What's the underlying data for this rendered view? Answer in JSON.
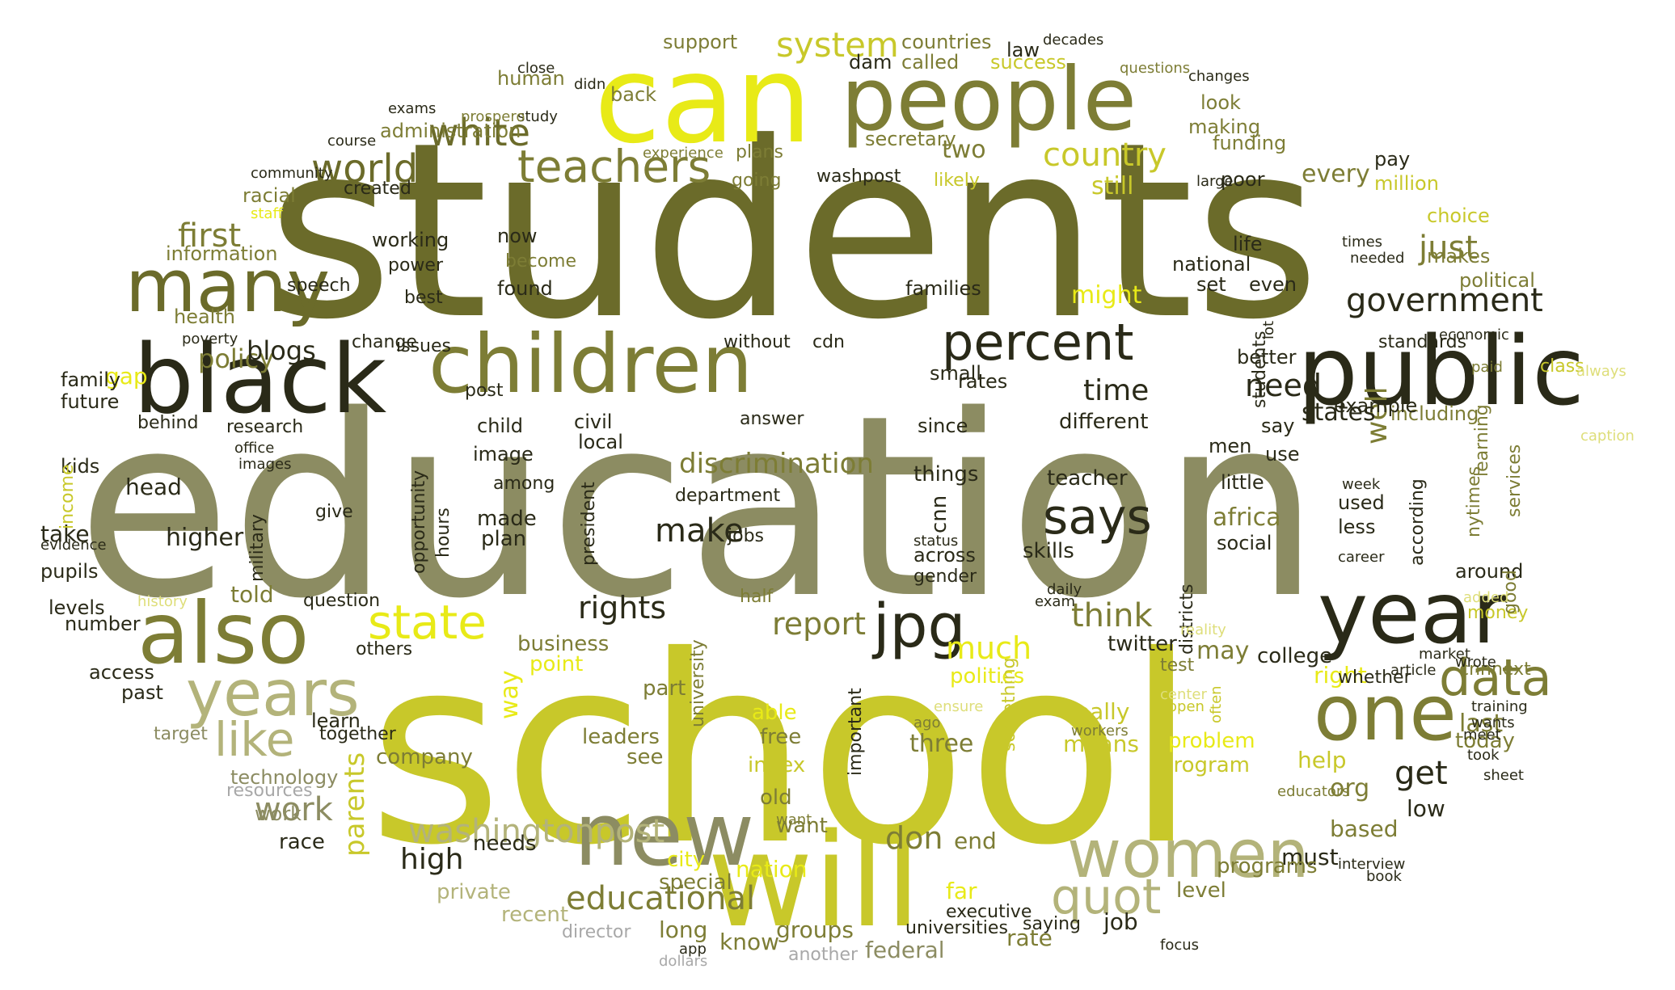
{
  "palette": {
    "background": "#ffffff",
    "olive_dark": "#6b6b2a",
    "olive_grey": "#8c8c62",
    "olive_black": "#2a2a18",
    "olive_mid": "#7d7d35",
    "yellow_green": "#c8c82a",
    "bright_yellow": "#e8ea17",
    "khaki": "#b3b37a",
    "pale_yellow": "#dede7a",
    "grey": "#a8a8a8"
  },
  "words": [
    {
      "text": "students",
      "color": "olive_dark"
    },
    {
      "text": "education",
      "color": "olive_grey"
    },
    {
      "text": "school",
      "color": "yellow_green"
    },
    {
      "text": "can",
      "color": "bright_yellow"
    },
    {
      "text": "people",
      "color": "olive_mid"
    },
    {
      "text": "public",
      "color": "olive_black"
    },
    {
      "text": "children",
      "color": "olive_mid"
    },
    {
      "text": "black",
      "color": "olive_black"
    },
    {
      "text": "will",
      "color": "yellow_green"
    },
    {
      "text": "also",
      "color": "olive_mid"
    },
    {
      "text": "year",
      "color": "olive_black"
    },
    {
      "text": "years",
      "color": "khaki"
    },
    {
      "text": "new",
      "color": "olive_grey"
    },
    {
      "text": "many",
      "color": "olive_dark"
    },
    {
      "text": "women",
      "color": "khaki"
    },
    {
      "text": "one",
      "color": "olive_mid"
    },
    {
      "text": "percent",
      "color": "olive_black"
    },
    {
      "text": "state",
      "color": "bright_yellow"
    },
    {
      "text": "jpg",
      "color": "olive_black"
    },
    {
      "text": "data",
      "color": "olive_mid"
    },
    {
      "text": "says",
      "color": "olive_black"
    },
    {
      "text": "quot",
      "color": "khaki"
    },
    {
      "text": "like",
      "color": "khaki"
    },
    {
      "text": "teachers",
      "color": "olive_mid"
    },
    {
      "text": "world",
      "color": "olive_dark"
    },
    {
      "text": "white",
      "color": "olive_dark"
    },
    {
      "text": "system",
      "color": "yellow_green"
    },
    {
      "text": "washingtonpost",
      "color": "khaki"
    },
    {
      "text": "educational",
      "color": "olive_mid"
    },
    {
      "text": "government",
      "color": "olive_black"
    },
    {
      "text": "rights",
      "color": "olive_black"
    },
    {
      "text": "first",
      "color": "olive_mid"
    },
    {
      "text": "country",
      "color": "yellow_green"
    },
    {
      "text": "make",
      "color": "olive_black"
    },
    {
      "text": "work",
      "color": "olive_grey"
    },
    {
      "text": "think",
      "color": "olive_mid"
    },
    {
      "text": "report",
      "color": "olive_mid"
    },
    {
      "text": "get",
      "color": "olive_black"
    },
    {
      "text": "just",
      "color": "olive_mid"
    },
    {
      "text": "need",
      "color": "olive_black"
    },
    {
      "text": "much",
      "color": "bright_yellow"
    },
    {
      "text": "high",
      "color": "olive_black"
    },
    {
      "text": "don",
      "color": "olive_mid"
    },
    {
      "text": "well",
      "color": "olive_mid"
    },
    {
      "text": "time",
      "color": "olive_black"
    },
    {
      "text": "states",
      "color": "olive_black"
    },
    {
      "text": "discrimination",
      "color": "olive_mid"
    },
    {
      "text": "parents",
      "color": "yellow_green"
    },
    {
      "text": "policy",
      "color": "olive_mid"
    },
    {
      "text": "blogs",
      "color": "olive_black"
    },
    {
      "text": "might",
      "color": "bright_yellow"
    },
    {
      "text": "still",
      "color": "yellow_green"
    },
    {
      "text": "two",
      "color": "olive_mid"
    },
    {
      "text": "africa",
      "color": "olive_mid"
    },
    {
      "text": "may",
      "color": "olive_mid"
    },
    {
      "text": "way",
      "color": "bright_yellow"
    },
    {
      "text": "last",
      "color": "olive_mid"
    },
    {
      "text": "org",
      "color": "olive_mid"
    },
    {
      "text": "every",
      "color": "olive_mid"
    },
    {
      "text": "higher",
      "color": "olive_black"
    },
    {
      "text": "told",
      "color": "olive_mid"
    },
    {
      "text": "take",
      "color": "olive_black"
    },
    {
      "text": "gap",
      "color": "bright_yellow"
    },
    {
      "text": "head",
      "color": "olive_black"
    },
    {
      "text": "help",
      "color": "yellow_green"
    },
    {
      "text": "right",
      "color": "bright_yellow"
    },
    {
      "text": "three",
      "color": "olive_mid"
    },
    {
      "text": "means",
      "color": "yellow_green"
    },
    {
      "text": "really",
      "color": "yellow_green"
    },
    {
      "text": "based",
      "color": "olive_mid"
    },
    {
      "text": "nation",
      "color": "bright_yellow"
    },
    {
      "text": "know",
      "color": "olive_mid"
    },
    {
      "text": "long",
      "color": "olive_mid"
    },
    {
      "text": "federal",
      "color": "olive_grey"
    },
    {
      "text": "rate",
      "color": "olive_mid"
    },
    {
      "text": "groups",
      "color": "olive_mid"
    },
    {
      "text": "end",
      "color": "olive_mid"
    },
    {
      "text": "far",
      "color": "bright_yellow"
    },
    {
      "text": "job",
      "color": "olive_black"
    },
    {
      "text": "low",
      "color": "olive_black"
    },
    {
      "text": "must",
      "color": "olive_black"
    },
    {
      "text": "city",
      "color": "bright_yellow"
    },
    {
      "text": "special",
      "color": "olive_mid"
    },
    {
      "text": "private",
      "color": "khaki"
    },
    {
      "text": "recent",
      "color": "khaki"
    },
    {
      "text": "race",
      "color": "olive_black"
    },
    {
      "text": "needs",
      "color": "olive_black"
    },
    {
      "text": "programs",
      "color": "olive_mid"
    },
    {
      "text": "level",
      "color": "olive_mid"
    },
    {
      "text": "problem",
      "color": "bright_yellow"
    },
    {
      "text": "program",
      "color": "yellow_green"
    },
    {
      "text": "today",
      "color": "olive_mid"
    },
    {
      "text": "college",
      "color": "olive_black"
    },
    {
      "text": "twitter",
      "color": "olive_black"
    },
    {
      "text": "politics",
      "color": "bright_yellow"
    },
    {
      "text": "business",
      "color": "olive_mid"
    },
    {
      "text": "point",
      "color": "bright_yellow"
    },
    {
      "text": "part",
      "color": "olive_mid"
    },
    {
      "text": "see",
      "color": "olive_mid"
    },
    {
      "text": "free",
      "color": "olive_mid"
    },
    {
      "text": "able",
      "color": "bright_yellow"
    },
    {
      "text": "old",
      "color": "olive_mid"
    },
    {
      "text": "want",
      "color": "olive_mid"
    },
    {
      "text": "index",
      "color": "yellow_green"
    },
    {
      "text": "leaders",
      "color": "olive_mid"
    },
    {
      "text": "company",
      "color": "olive_mid"
    },
    {
      "text": "learn",
      "color": "olive_black"
    },
    {
      "text": "access",
      "color": "olive_black"
    },
    {
      "text": "past",
      "color": "olive_black"
    },
    {
      "text": "number",
      "color": "olive_black"
    },
    {
      "text": "levels",
      "color": "olive_black"
    },
    {
      "text": "pupils",
      "color": "olive_black"
    },
    {
      "text": "kids",
      "color": "olive_black"
    },
    {
      "text": "family",
      "color": "olive_black"
    },
    {
      "text": "future",
      "color": "olive_black"
    },
    {
      "text": "health",
      "color": "olive_mid"
    },
    {
      "text": "information",
      "color": "olive_mid"
    },
    {
      "text": "racial",
      "color": "olive_mid"
    },
    {
      "text": "administration",
      "color": "olive_mid"
    },
    {
      "text": "human",
      "color": "olive_mid"
    },
    {
      "text": "support",
      "color": "olive_mid"
    },
    {
      "text": "back",
      "color": "olive_mid"
    },
    {
      "text": "called",
      "color": "olive_mid"
    },
    {
      "text": "success",
      "color": "yellow_green"
    },
    {
      "text": "countries",
      "color": "olive_mid"
    },
    {
      "text": "law",
      "color": "olive_black"
    },
    {
      "text": "dam",
      "color": "olive_black"
    },
    {
      "text": "secretary",
      "color": "olive_mid"
    },
    {
      "text": "funding",
      "color": "olive_mid"
    },
    {
      "text": "look",
      "color": "olive_mid"
    },
    {
      "text": "making",
      "color": "olive_mid"
    },
    {
      "text": "poor",
      "color": "olive_black"
    },
    {
      "text": "pay",
      "color": "olive_black"
    },
    {
      "text": "choice",
      "color": "yellow_green"
    },
    {
      "text": "million",
      "color": "yellow_green"
    },
    {
      "text": "makes",
      "color": "olive_mid"
    },
    {
      "text": "political",
      "color": "olive_mid"
    },
    {
      "text": "national",
      "color": "olive_black"
    },
    {
      "text": "life",
      "color": "olive_black"
    },
    {
      "text": "set",
      "color": "olive_black"
    },
    {
      "text": "even",
      "color": "olive_black"
    },
    {
      "text": "better",
      "color": "olive_black"
    },
    {
      "text": "say",
      "color": "olive_black"
    },
    {
      "text": "including",
      "color": "olive_mid"
    },
    {
      "text": "example",
      "color": "olive_black"
    },
    {
      "text": "class",
      "color": "yellow_green"
    },
    {
      "text": "standards",
      "color": "olive_black"
    },
    {
      "text": "use",
      "color": "olive_black"
    },
    {
      "text": "little",
      "color": "olive_black"
    },
    {
      "text": "men",
      "color": "olive_black"
    },
    {
      "text": "social",
      "color": "olive_black"
    },
    {
      "text": "used",
      "color": "olive_black"
    },
    {
      "text": "less",
      "color": "olive_black"
    },
    {
      "text": "around",
      "color": "olive_black"
    },
    {
      "text": "whether",
      "color": "olive_black"
    },
    {
      "text": "test",
      "color": "olive_mid"
    },
    {
      "text": "cnnnext",
      "color": "olive_mid"
    },
    {
      "text": "money",
      "color": "yellow_green"
    },
    {
      "text": "nytimes",
      "color": "olive_mid"
    },
    {
      "text": "learning",
      "color": "olive_mid"
    },
    {
      "text": "services",
      "color": "olive_mid"
    },
    {
      "text": "good",
      "color": "olive_mid"
    },
    {
      "text": "according",
      "color": "olive_black"
    },
    {
      "text": "teacher",
      "color": "olive_black"
    },
    {
      "text": "different",
      "color": "olive_black"
    },
    {
      "text": "skills",
      "color": "olive_black"
    },
    {
      "text": "across",
      "color": "olive_black"
    },
    {
      "text": "gender",
      "color": "olive_black"
    },
    {
      "text": "things",
      "color": "olive_black"
    },
    {
      "text": "cnn",
      "color": "olive_black"
    },
    {
      "text": "since",
      "color": "olive_black"
    },
    {
      "text": "small",
      "color": "olive_black"
    },
    {
      "text": "rates",
      "color": "olive_black"
    },
    {
      "text": "families",
      "color": "olive_black"
    },
    {
      "text": "likely",
      "color": "yellow_green"
    },
    {
      "text": "going",
      "color": "olive_mid"
    },
    {
      "text": "plans",
      "color": "olive_mid"
    },
    {
      "text": "washpost",
      "color": "olive_black"
    },
    {
      "text": "cdn",
      "color": "olive_black"
    },
    {
      "text": "without",
      "color": "olive_black"
    },
    {
      "text": "answer",
      "color": "olive_black"
    },
    {
      "text": "jobs",
      "color": "olive_black"
    },
    {
      "text": "half",
      "color": "olive_mid"
    },
    {
      "text": "department",
      "color": "olive_black"
    },
    {
      "text": "among",
      "color": "olive_black"
    },
    {
      "text": "made",
      "color": "olive_black"
    },
    {
      "text": "plan",
      "color": "olive_black"
    },
    {
      "text": "image",
      "color": "olive_black"
    },
    {
      "text": "child",
      "color": "olive_black"
    },
    {
      "text": "local",
      "color": "olive_black"
    },
    {
      "text": "civil",
      "color": "olive_black"
    },
    {
      "text": "post",
      "color": "olive_black"
    },
    {
      "text": "now",
      "color": "olive_black"
    },
    {
      "text": "become",
      "color": "olive_mid"
    },
    {
      "text": "found",
      "color": "olive_black"
    },
    {
      "text": "working",
      "color": "olive_black"
    },
    {
      "text": "power",
      "color": "olive_black"
    },
    {
      "text": "best",
      "color": "olive_black"
    },
    {
      "text": "issues",
      "color": "olive_black"
    },
    {
      "text": "change",
      "color": "olive_black"
    },
    {
      "text": "speech",
      "color": "olive_black"
    },
    {
      "text": "created",
      "color": "olive_black"
    },
    {
      "text": "research",
      "color": "olive_black"
    },
    {
      "text": "behind",
      "color": "olive_black"
    },
    {
      "text": "give",
      "color": "olive_black"
    },
    {
      "text": "technology",
      "color": "olive_grey"
    },
    {
      "text": "resources",
      "color": "grey"
    },
    {
      "text": "director",
      "color": "grey"
    },
    {
      "text": "another",
      "color": "grey"
    },
    {
      "text": "saying",
      "color": "olive_black"
    },
    {
      "text": "executive",
      "color": "olive_black"
    },
    {
      "text": "universities",
      "color": "olive_black"
    },
    {
      "text": "university",
      "color": "olive_mid"
    },
    {
      "text": "president",
      "color": "olive_black"
    },
    {
      "text": "opportunity",
      "color": "olive_black"
    },
    {
      "text": "military",
      "color": "olive_black"
    },
    {
      "text": "income",
      "color": "yellow_green"
    },
    {
      "text": "hours",
      "color": "olive_black"
    },
    {
      "text": "students",
      "color": "olive_black"
    },
    {
      "text": "districts",
      "color": "olive_black"
    },
    {
      "text": "important",
      "color": "olive_black"
    },
    {
      "text": "something",
      "color": "yellow_green"
    },
    {
      "text": "others",
      "color": "olive_black"
    },
    {
      "text": "question",
      "color": "olive_black"
    },
    {
      "text": "together",
      "color": "olive_black"
    },
    {
      "text": "target",
      "color": "olive_grey"
    },
    {
      "text": "history",
      "color": "pale_yellow"
    },
    {
      "text": "evidence",
      "color": "olive_black"
    },
    {
      "text": "office",
      "color": "olive_black"
    },
    {
      "text": "images",
      "color": "olive_black"
    },
    {
      "text": "poverty",
      "color": "olive_black"
    },
    {
      "text": "staff",
      "color": "bright_yellow"
    },
    {
      "text": "experience",
      "color": "olive_mid"
    },
    {
      "text": "study",
      "color": "olive_black"
    },
    {
      "text": "prospero",
      "color": "olive_mid"
    },
    {
      "text": "course",
      "color": "olive_black"
    },
    {
      "text": "exams",
      "color": "olive_black"
    },
    {
      "text": "community",
      "color": "olive_black"
    },
    {
      "text": "close",
      "color": "olive_black"
    },
    {
      "text": "didn",
      "color": "olive_black"
    },
    {
      "text": "questions",
      "color": "olive_mid"
    },
    {
      "text": "decades",
      "color": "olive_black"
    },
    {
      "text": "changes",
      "color": "olive_black"
    },
    {
      "text": "large",
      "color": "olive_black"
    },
    {
      "text": "lot",
      "color": "olive_black"
    },
    {
      "text": "times",
      "color": "olive_black"
    },
    {
      "text": "needed",
      "color": "olive_black"
    },
    {
      "text": "economic",
      "color": "olive_black"
    },
    {
      "text": "paid",
      "color": "olive_mid"
    },
    {
      "text": "always",
      "color": "pale_yellow"
    },
    {
      "text": "caption",
      "color": "pale_yellow"
    },
    {
      "text": "week",
      "color": "olive_black"
    },
    {
      "text": "career",
      "color": "olive_black"
    },
    {
      "text": "reality",
      "color": "pale_yellow"
    },
    {
      "text": "often",
      "color": "yellow_green"
    },
    {
      "text": "workers",
      "color": "olive_mid"
    },
    {
      "text": "ago",
      "color": "olive_mid"
    },
    {
      "text": "status",
      "color": "olive_black"
    },
    {
      "text": "daily",
      "color": "olive_black"
    },
    {
      "text": "exam",
      "color": "olive_black"
    },
    {
      "text": "market",
      "color": "olive_black"
    },
    {
      "text": "added",
      "color": "pale_yellow"
    },
    {
      "text": "training",
      "color": "olive_black"
    },
    {
      "text": "wants",
      "color": "olive_black"
    },
    {
      "text": "meet",
      "color": "olive_black"
    },
    {
      "text": "took",
      "color": "olive_black"
    },
    {
      "text": "sheet",
      "color": "olive_black"
    },
    {
      "text": "wrote",
      "color": "olive_black"
    },
    {
      "text": "article",
      "color": "olive_black"
    },
    {
      "text": "interview",
      "color": "olive_black"
    },
    {
      "text": "book",
      "color": "olive_black"
    },
    {
      "text": "educators",
      "color": "olive_mid"
    },
    {
      "text": "center",
      "color": "pale_yellow"
    },
    {
      "text": "open",
      "color": "yellow_green"
    },
    {
      "text": "ensure",
      "color": "pale_yellow"
    },
    {
      "text": "want",
      "color": "olive_mid"
    },
    {
      "text": "focus",
      "color": "olive_black"
    },
    {
      "text": "app",
      "color": "olive_black"
    },
    {
      "text": "dollars",
      "color": "grey"
    },
    {
      "text": "work",
      "color": "olive_grey"
    }
  ]
}
